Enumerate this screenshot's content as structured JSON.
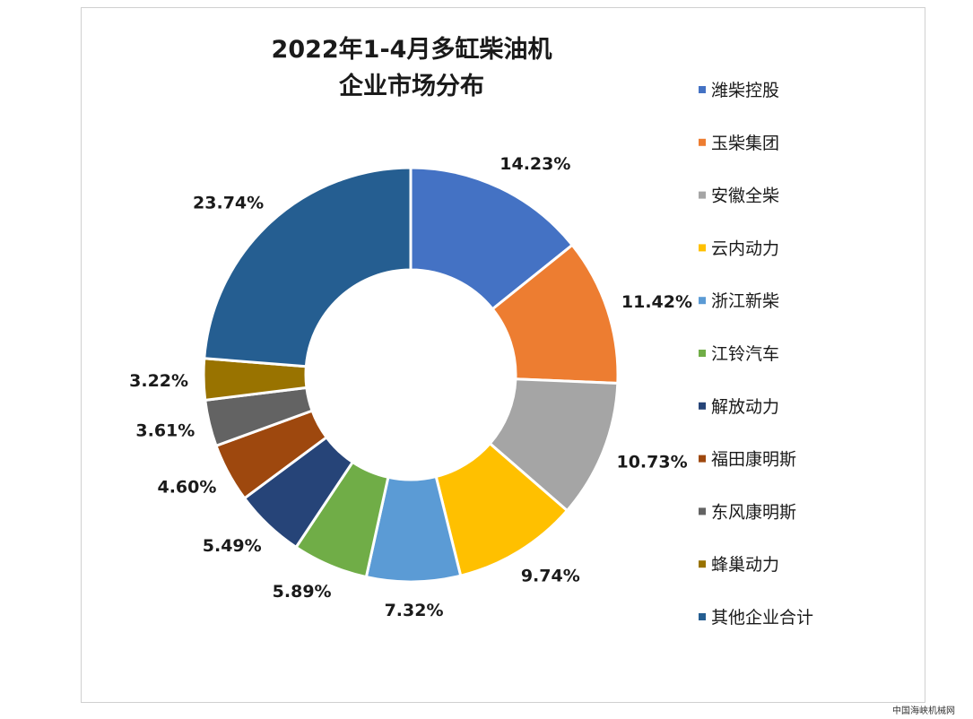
{
  "chart_data": {
    "type": "pie",
    "donut": true,
    "title_lines": [
      "2022年1-4月多缸柴油机",
      "企业市场分布"
    ],
    "legend_position": "right",
    "slices": [
      {
        "label": "潍柴控股",
        "value": 14.23,
        "display": "14.23%",
        "color": "#4472c4"
      },
      {
        "label": "玉柴集团",
        "value": 11.42,
        "display": "11.42%",
        "color": "#ed7d31"
      },
      {
        "label": "安徽全柴",
        "value": 10.73,
        "display": "10.73%",
        "color": "#a5a5a5"
      },
      {
        "label": "云内动力",
        "value": 9.74,
        "display": "9.74%",
        "color": "#ffc000"
      },
      {
        "label": "浙江新柴",
        "value": 7.32,
        "display": "7.32%",
        "color": "#5b9bd5"
      },
      {
        "label": "江铃汽车",
        "value": 5.89,
        "display": "5.89%",
        "color": "#70ad47"
      },
      {
        "label": "解放动力",
        "value": 5.49,
        "display": "5.49%",
        "color": "#264478"
      },
      {
        "label": "福田康明斯",
        "value": 4.6,
        "display": "4.60%",
        "color": "#9e480e"
      },
      {
        "label": "东风康明斯",
        "value": 3.61,
        "display": "3.61%",
        "color": "#636363"
      },
      {
        "label": "蜂巢动力",
        "value": 3.22,
        "display": "3.22%",
        "color": "#997300"
      },
      {
        "label": "其他企业合计",
        "value": 23.74,
        "display": "23.74%",
        "color": "#255e91"
      }
    ]
  },
  "watermark": "中国海峡机械网"
}
